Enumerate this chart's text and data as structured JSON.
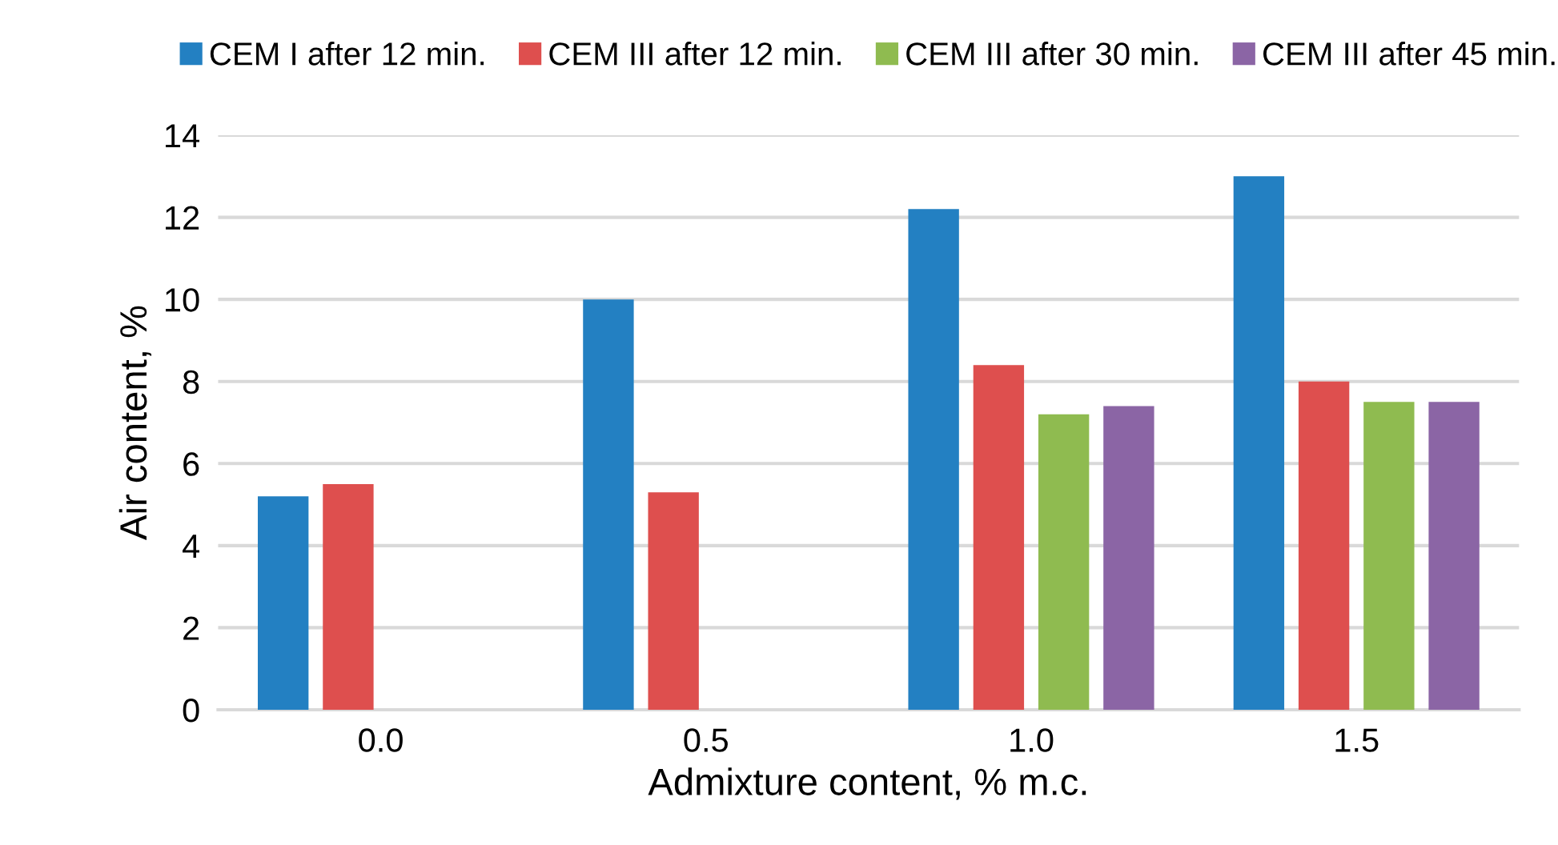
{
  "chart_data": {
    "type": "bar",
    "xlabel": "Admixture content, % m.c.",
    "ylabel": "Air content, %",
    "categories": [
      "0.0",
      "0.5",
      "1.0",
      "1.5"
    ],
    "series": [
      {
        "name": "CEM I after 12 min.",
        "color": "#2380c2",
        "values": [
          5.2,
          10.0,
          12.2,
          13.0
        ]
      },
      {
        "name": "CEM III after 12 min.",
        "color": "#de4f4e",
        "values": [
          5.5,
          5.3,
          8.4,
          8.0
        ]
      },
      {
        "name": "CEM III after 30 min.",
        "color": "#8fbb50",
        "values": [
          null,
          null,
          7.2,
          7.5
        ]
      },
      {
        "name": "CEM III after 45 min.",
        "color": "#8b65a5",
        "values": [
          null,
          null,
          7.4,
          7.5
        ]
      }
    ],
    "ylim": [
      0,
      14
    ],
    "yticks": [
      0,
      2,
      4,
      6,
      8,
      10,
      12,
      14
    ],
    "grid": "y",
    "legend": "top"
  }
}
